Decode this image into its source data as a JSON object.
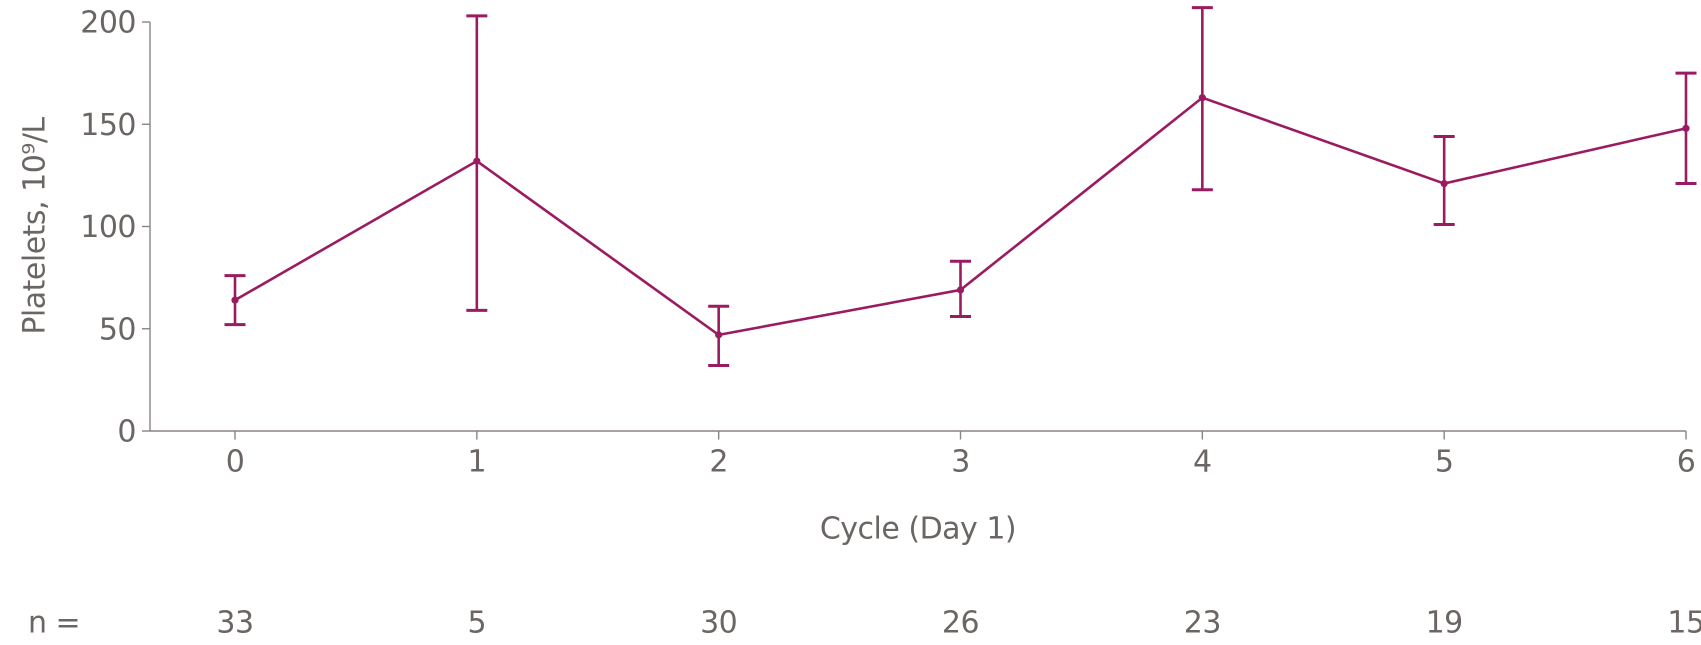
{
  "chart_data": {
    "type": "line",
    "title": "",
    "xlabel": "Cycle (Day 1)",
    "ylabel": "Platelets, 10⁹/L",
    "x": [
      0,
      1,
      2,
      3,
      4,
      5,
      6
    ],
    "xticklabels": [
      "0",
      "1",
      "2",
      "3",
      "4",
      "5",
      "6"
    ],
    "yticks": [
      0,
      50,
      100,
      150,
      200
    ],
    "ylim": [
      0,
      207
    ],
    "grid": false,
    "legend_position": "none",
    "series": [
      {
        "name": "platelets-mean-with-error-bars",
        "mean": [
          64,
          132,
          47,
          69,
          163,
          121,
          148
        ],
        "err_low": [
          52,
          59,
          32,
          56,
          118,
          101,
          121
        ],
        "err_high": [
          76,
          203,
          61,
          83,
          207,
          144,
          175
        ],
        "marker": "circle"
      }
    ],
    "n_row": {
      "label": "n =",
      "values": [
        33,
        5,
        30,
        26,
        23,
        19,
        15
      ]
    },
    "colors": {
      "line": "#9B1B61",
      "text": "#6B6663",
      "axis": "#8A8482",
      "background": "#FFFFFF"
    }
  }
}
